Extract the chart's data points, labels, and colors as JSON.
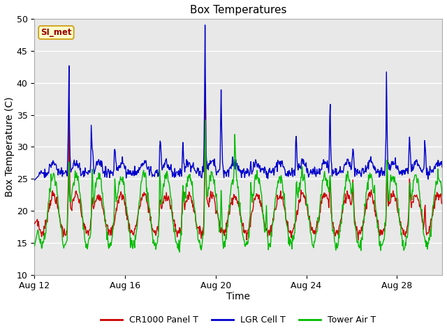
{
  "title": "Box Temperatures",
  "xlabel": "Time",
  "ylabel": "Box Temperature (C)",
  "ylim": [
    10,
    50
  ],
  "yticks": [
    10,
    15,
    20,
    25,
    30,
    35,
    40,
    45,
    50
  ],
  "xlim_days": [
    0,
    18
  ],
  "xtick_labels": [
    "Aug 12",
    "Aug 16",
    "Aug 20",
    "Aug 24",
    "Aug 28"
  ],
  "xtick_positions": [
    0,
    4,
    8,
    12,
    16
  ],
  "label_text": "SI_met",
  "plot_bg": "#e8e8e8",
  "fig_bg": "#ffffff",
  "grid_color": "#ffffff",
  "line_red": "#cc0000",
  "line_blue": "#0000cc",
  "line_green": "#00bb00",
  "legend_labels": [
    "CR1000 Panel T",
    "LGR Cell T",
    "Tower Air T"
  ],
  "title_fontsize": 11,
  "axis_fontsize": 10,
  "tick_fontsize": 9,
  "legend_fontsize": 9
}
